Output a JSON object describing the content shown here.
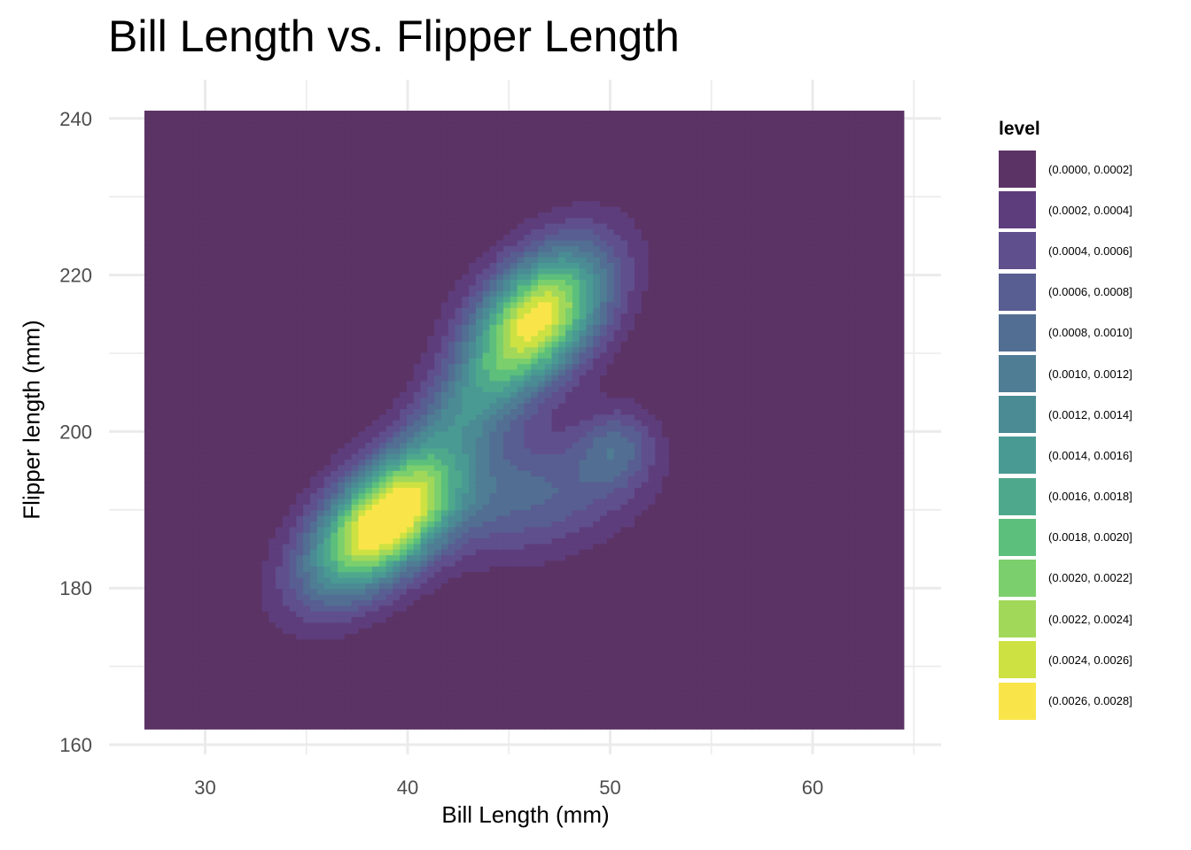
{
  "chart_data": {
    "type": "density_contour",
    "title": "Bill Length vs. Flipper Length",
    "xlabel": "Bill Length (mm)",
    "ylabel": "Flipper length (mm)",
    "xlim": [
      27,
      64.5
    ],
    "ylim": [
      162,
      241
    ],
    "x_ticks": [
      30,
      40,
      50,
      60
    ],
    "y_ticks": [
      160,
      180,
      200,
      220,
      240
    ],
    "grid": true,
    "legend_position": "right",
    "legend": {
      "title": "level",
      "entries": [
        {
          "label": "(0.0000, 0.0002]",
          "color": "#5b3365"
        },
        {
          "label": "(0.0002, 0.0004]",
          "color": "#5e3d7c"
        },
        {
          "label": "(0.0004, 0.0006]",
          "color": "#5f4f8c"
        },
        {
          "label": "(0.0006, 0.0008]",
          "color": "#585e91"
        },
        {
          "label": "(0.0008, 0.0010]",
          "color": "#526e92"
        },
        {
          "label": "(0.0010, 0.0012]",
          "color": "#4f7d94"
        },
        {
          "label": "(0.0012, 0.0014]",
          "color": "#4a8b94"
        },
        {
          "label": "(0.0014, 0.0016]",
          "color": "#4a9a94"
        },
        {
          "label": "(0.0016, 0.0018]",
          "color": "#4ea98c"
        },
        {
          "label": "(0.0018, 0.0020]",
          "color": "#5cbf7c"
        },
        {
          "label": "(0.0020, 0.0022]",
          "color": "#7bcf6c"
        },
        {
          "label": "(0.0022, 0.0024]",
          "color": "#a2d85a"
        },
        {
          "label": "(0.0024, 0.0026]",
          "color": "#cde242"
        },
        {
          "label": "(0.0026, 0.0028]",
          "color": "#f9e54a"
        }
      ]
    },
    "density_modes": [
      {
        "x": 38.8,
        "y": 188.5,
        "peak_level": "(0.0026, 0.0028]"
      },
      {
        "x": 46.4,
        "y": 214.5,
        "peak_level": "(0.0024, 0.0026]"
      },
      {
        "x": 50.3,
        "y": 198.0,
        "peak_level": "(0.0012, 0.0014]"
      }
    ]
  }
}
